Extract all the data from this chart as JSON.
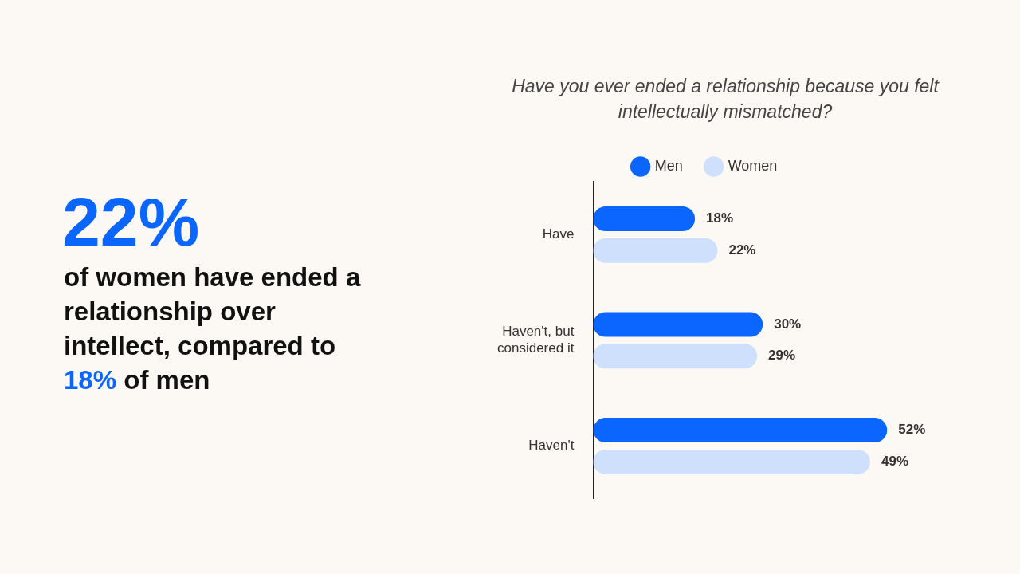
{
  "chart_data": {
    "type": "bar",
    "orientation": "horizontal",
    "title": "Have you ever ended a relationship because you felt intellectually mismatched?",
    "categories": [
      "Have",
      "Haven't, but considered it",
      "Haven't"
    ],
    "series": [
      {
        "name": "Men",
        "color": "#0a66ff",
        "values": [
          18,
          30,
          52
        ],
        "value_labels": [
          "18%",
          "30%",
          "52%"
        ]
      },
      {
        "name": "Women",
        "color": "#cfe0fd",
        "values": [
          22,
          29,
          49
        ],
        "value_labels": [
          "22%",
          "29%",
          "49%"
        ]
      }
    ],
    "legend": "top",
    "annotations": [
      "22%",
      "of women have ended a relationship over intellect, compared to",
      "18%",
      "of men"
    ]
  }
}
